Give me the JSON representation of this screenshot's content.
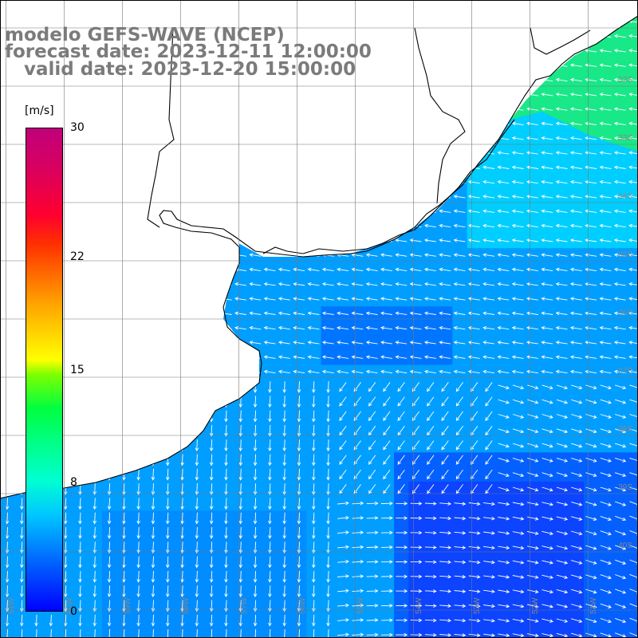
{
  "title": {
    "line1": "modelo GEFS-WAVE (NCEP)",
    "line2": "forecast date: 2023-12-11 12:00:00",
    "line3": "   valid date: 2023-12-20 15:00:00"
  },
  "colorbar": {
    "unit": "[m/s]",
    "ticks": [
      {
        "label": "30",
        "value": 30
      },
      {
        "label": "22",
        "value": 22
      },
      {
        "label": "15",
        "value": 15
      },
      {
        "label": "8",
        "value": 8
      },
      {
        "label": "0",
        "value": 0
      }
    ],
    "min": 0,
    "max": 30
  },
  "map": {
    "lat_labels": [
      "32S",
      "33S",
      "34S",
      "35S",
      "36S",
      "37S",
      "38S",
      "39S",
      "40S"
    ],
    "lon_labels": [
      "61W",
      "60W",
      "59W",
      "58W",
      "57W",
      "56W",
      "55W",
      "54W",
      "53W",
      "52W",
      "51W"
    ],
    "colors": {
      "land": "#ffffff",
      "coast": "#000000",
      "grid": "#777777",
      "arrow": "#ffffff"
    }
  }
}
